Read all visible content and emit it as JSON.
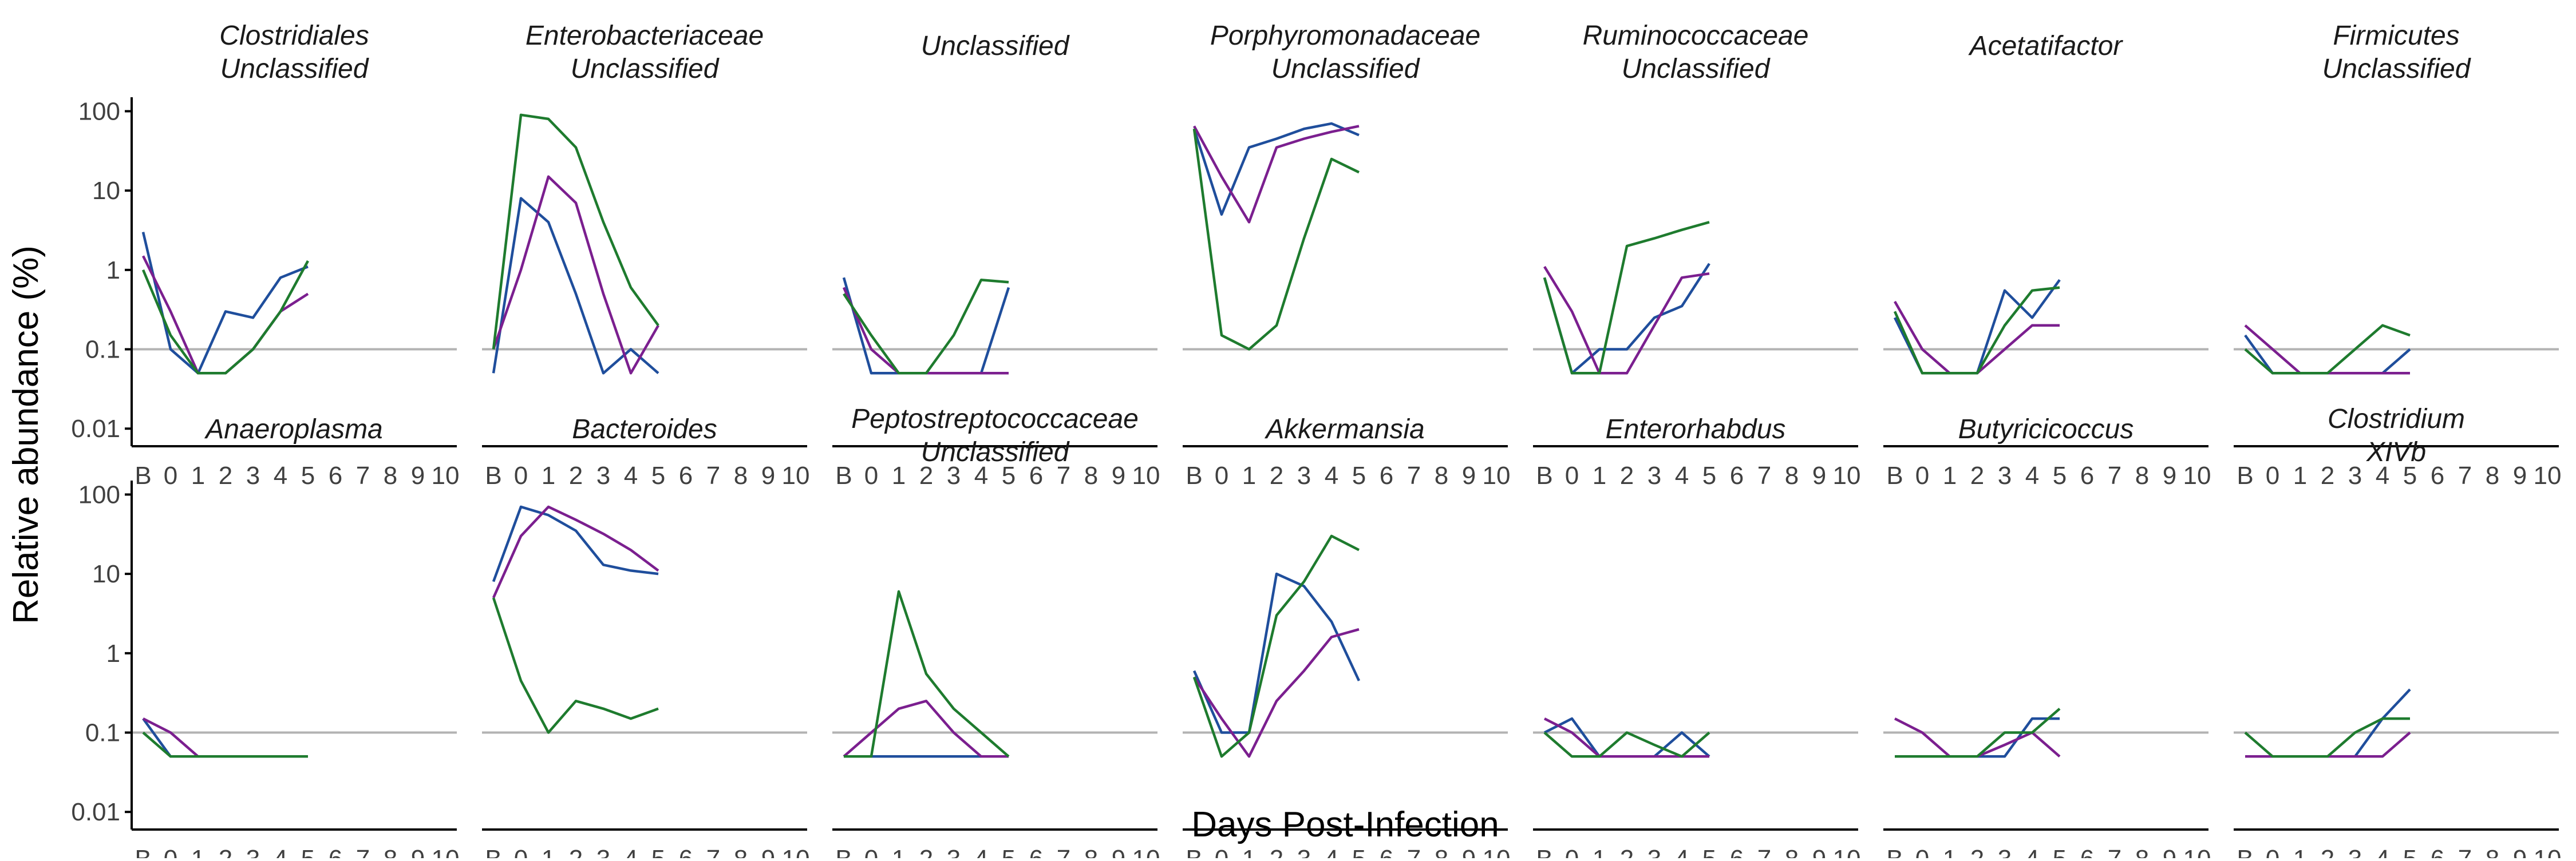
{
  "chart_data": {
    "type": "line",
    "xlabel": "Days Post-Infection",
    "ylabel": "Relative abundance (%)",
    "x_categories": [
      "B",
      "0",
      "1",
      "2",
      "3",
      "4",
      "5",
      "6",
      "7",
      "8",
      "9",
      "10"
    ],
    "y_scale": "log10",
    "y_ticks": [
      0.01,
      0.1,
      1,
      10,
      100
    ],
    "y_tick_labels": [
      "0.01",
      "0.1",
      "1",
      "10",
      "100"
    ],
    "ylim": [
      0.006,
      150
    ],
    "reference_line": {
      "y": 0.1,
      "color": "#b3b3b3"
    },
    "grid": false,
    "series_colors": [
      "#1f4e9c",
      "#7b1f8f",
      "#1e7b2e"
    ],
    "panels": [
      {
        "title": [
          "Clostridiales",
          "Unclassified"
        ],
        "series": [
          [
            3,
            0.1,
            0.05,
            0.3,
            0.25,
            0.8,
            1.1
          ],
          [
            1.5,
            0.3,
            0.05,
            0.05,
            0.1,
            0.3,
            0.5
          ],
          [
            1,
            0.15,
            0.05,
            0.05,
            0.1,
            0.3,
            1.3
          ]
        ]
      },
      {
        "title": [
          "Enterobacteriaceae",
          "Unclassified"
        ],
        "series": [
          [
            0.05,
            8,
            4,
            0.5,
            0.05,
            0.1,
            0.05
          ],
          [
            0.1,
            1,
            15,
            7,
            0.5,
            0.05,
            0.2
          ],
          [
            0.1,
            90,
            80,
            35,
            4,
            0.6,
            0.2
          ]
        ]
      },
      {
        "title": [
          "Unclassified"
        ],
        "series": [
          [
            0.8,
            0.05,
            0.05,
            0.05,
            0.05,
            0.05,
            0.6
          ],
          [
            0.6,
            0.1,
            0.05,
            0.05,
            0.05,
            0.05,
            0.05
          ],
          [
            0.5,
            0.15,
            0.05,
            0.05,
            0.15,
            0.75,
            0.7
          ]
        ]
      },
      {
        "title": [
          "Porphyromonadaceae",
          "Unclassified"
        ],
        "series": [
          [
            60,
            5,
            35,
            45,
            60,
            70,
            50
          ],
          [
            65,
            15,
            4,
            35,
            45,
            55,
            65
          ],
          [
            60,
            0.15,
            0.1,
            0.2,
            2.5,
            25,
            17
          ]
        ]
      },
      {
        "title": [
          "Ruminococcaceae",
          "Unclassified"
        ],
        "series": [
          [
            0.8,
            0.05,
            0.1,
            0.1,
            0.25,
            0.35,
            1.2
          ],
          [
            1.1,
            0.3,
            0.05,
            0.05,
            0.2,
            0.8,
            0.9
          ],
          [
            0.8,
            0.05,
            0.05,
            2,
            2.5,
            3.2,
            4
          ]
        ]
      },
      {
        "title": [
          "Acetatifactor"
        ],
        "series": [
          [
            0.25,
            0.05,
            0.05,
            0.05,
            0.55,
            0.25,
            0.75
          ],
          [
            0.4,
            0.1,
            0.05,
            0.05,
            0.1,
            0.2,
            0.2
          ],
          [
            0.3,
            0.05,
            0.05,
            0.05,
            0.2,
            0.55,
            0.6
          ]
        ]
      },
      {
        "title": [
          "Firmicutes",
          "Unclassified"
        ],
        "series": [
          [
            0.15,
            0.05,
            0.05,
            0.05,
            0.05,
            0.05,
            0.1
          ],
          [
            0.2,
            0.1,
            0.05,
            0.05,
            0.05,
            0.05,
            0.05
          ],
          [
            0.1,
            0.05,
            0.05,
            0.05,
            0.1,
            0.2,
            0.15
          ]
        ]
      },
      {
        "title": [
          "Anaeroplasma"
        ],
        "series": [
          [
            0.15,
            0.05,
            0.05,
            0.05,
            0.05,
            0.05,
            0.05
          ],
          [
            0.15,
            0.1,
            0.05,
            0.05,
            0.05,
            0.05,
            0.05
          ],
          [
            0.1,
            0.05,
            0.05,
            0.05,
            0.05,
            0.05,
            0.05
          ]
        ]
      },
      {
        "title": [
          "Bacteroides"
        ],
        "series": [
          [
            8,
            70,
            55,
            35,
            13,
            11,
            10
          ],
          [
            5,
            30,
            70,
            48,
            32,
            20,
            11
          ],
          [
            5,
            0.45,
            0.1,
            0.25,
            0.2,
            0.15,
            0.2
          ]
        ]
      },
      {
        "title": [
          "Peptostreptococcaceae",
          "Unclassified"
        ],
        "series": [
          [
            0.05,
            0.05,
            0.05,
            0.05,
            0.05,
            0.05,
            0.05
          ],
          [
            0.05,
            0.1,
            0.2,
            0.25,
            0.1,
            0.05,
            0.05
          ],
          [
            0.05,
            0.05,
            6,
            0.55,
            0.2,
            0.1,
            0.05
          ]
        ]
      },
      {
        "title": [
          "Akkermansia"
        ],
        "series": [
          [
            0.6,
            0.1,
            0.1,
            10,
            7,
            2.5,
            0.45
          ],
          [
            0.5,
            0.15,
            0.05,
            0.25,
            0.6,
            1.6,
            2
          ]
        ],
        "extra": [
          [
            0.5,
            0.05,
            0.1,
            3,
            8,
            30,
            20
          ]
        ]
      },
      {
        "title": [
          "Enterorhabdus"
        ],
        "series": [
          [
            0.1,
            0.15,
            0.05,
            0.05,
            0.05,
            0.1,
            0.05
          ],
          [
            0.15,
            0.1,
            0.05,
            0.05,
            0.05,
            0.05,
            0.05
          ],
          [
            0.1,
            0.05,
            0.05,
            0.1,
            0.07,
            0.05,
            0.1
          ]
        ]
      },
      {
        "title": [
          "Butyricicoccus"
        ],
        "series": [
          [
            0.05,
            0.05,
            0.05,
            0.05,
            0.05,
            0.15,
            0.15
          ],
          [
            0.15,
            0.1,
            0.05,
            0.05,
            0.07,
            0.1,
            0.05
          ],
          [
            0.05,
            0.05,
            0.05,
            0.05,
            0.1,
            0.1,
            0.2
          ]
        ]
      },
      {
        "title": [
          "Clostridium",
          "XIVb"
        ],
        "series": [
          [
            0.05,
            0.05,
            0.05,
            0.05,
            0.05,
            0.15,
            0.35
          ],
          [
            0.05,
            0.05,
            0.05,
            0.05,
            0.05,
            0.05,
            0.1
          ],
          [
            0.1,
            0.05,
            0.05,
            0.05,
            0.1,
            0.15,
            0.15
          ]
        ]
      }
    ]
  }
}
